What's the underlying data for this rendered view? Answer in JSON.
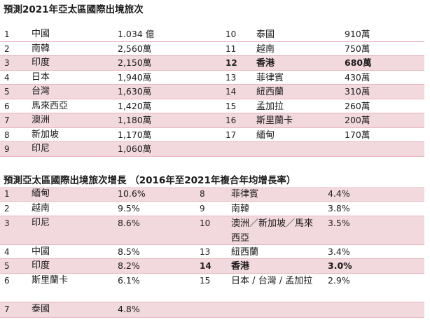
{
  "table1": {
    "title": "預測2021年亞太區國際出境旅次",
    "rows": [
      {
        "rank_l": "1",
        "country_l": "中國",
        "value_l": "1.034 億",
        "rank_r": "10",
        "country_r": "泰國",
        "value_r": "910萬",
        "pink": false
      },
      {
        "rank_l": "2",
        "country_l": "南韓",
        "value_l": "2,560萬",
        "rank_r": "11",
        "country_r": "越南",
        "value_r": "750萬",
        "pink": false
      },
      {
        "rank_l": "3",
        "country_l": "印度",
        "value_l": "2,150萬",
        "rank_r": "12",
        "country_r": "香港",
        "value_r": "680萬",
        "pink": true,
        "bold_right": true
      },
      {
        "rank_l": "4",
        "country_l": "日本",
        "value_l": "1,940萬",
        "rank_r": "13",
        "country_r": "菲律賓",
        "value_r": "430萬",
        "pink": false
      },
      {
        "rank_l": "5",
        "country_l": "台灣",
        "value_l": "1,630萬",
        "rank_r": "14",
        "country_r": "紐西蘭",
        "value_r": "310萬",
        "pink": true
      },
      {
        "rank_l": "6",
        "country_l": "馬來西亞",
        "value_l": "1,420萬",
        "rank_r": "15",
        "country_r": "孟加拉",
        "value_r": "260萬",
        "pink": false
      },
      {
        "rank_l": "7",
        "country_l": "澳洲",
        "value_l": "1,180萬",
        "rank_r": "16",
        "country_r": "斯里蘭卡",
        "value_r": "200萬",
        "pink": true
      },
      {
        "rank_l": "8",
        "country_l": "新加坡",
        "value_l": "1,170萬",
        "rank_r": "17",
        "country_r": "緬甸",
        "value_r": "170萬",
        "pink": false
      },
      {
        "rank_l": "9",
        "country_l": "印尼",
        "value_l": "1,060萬",
        "rank_r": "",
        "country_r": "",
        "value_r": "",
        "pink": true
      }
    ]
  },
  "table2": {
    "title": "預測亞太區國際出境旅次增長 （2016年至2021年複合年均增長率）",
    "rows": [
      {
        "rank_l": "1",
        "country_l": "緬甸",
        "value_l": "10.6%",
        "rank_r": "8",
        "country_r": "菲律賓",
        "value_r": "4.4%",
        "pink": true
      },
      {
        "rank_l": "2",
        "country_l": "越南",
        "value_l": "9.5%",
        "rank_r": "9",
        "country_r": "南韓",
        "value_r": "3.8%",
        "pink": false
      },
      {
        "rank_l": "3",
        "country_l": "印尼",
        "value_l": "8.6%",
        "rank_r": "10",
        "country_r": "澳洲／新加坡／馬來西亞",
        "value_r": "3.5%",
        "pink": true
      },
      {
        "rank_l": "4",
        "country_l": "中國",
        "value_l": "8.5%",
        "rank_r": "13",
        "country_r": "紐西蘭",
        "value_r": "3.4%",
        "pink": false
      },
      {
        "rank_l": "5",
        "country_l": "印度",
        "value_l": "8.2%",
        "rank_r": "14",
        "country_r": "香港",
        "value_r": "3.0%",
        "pink": true,
        "bold_right": true
      },
      {
        "rank_l": "6",
        "country_l": "斯里蘭卡",
        "value_l": "6.1%",
        "rank_r": "15",
        "country_r": "日本 / 台灣 / 孟加拉",
        "value_r": "2.9%",
        "pink": false
      },
      {
        "rank_l": "7",
        "country_l": "泰國",
        "value_l": "4.8%",
        "rank_r": "",
        "country_r": "",
        "value_r": "",
        "pink": true
      }
    ]
  }
}
